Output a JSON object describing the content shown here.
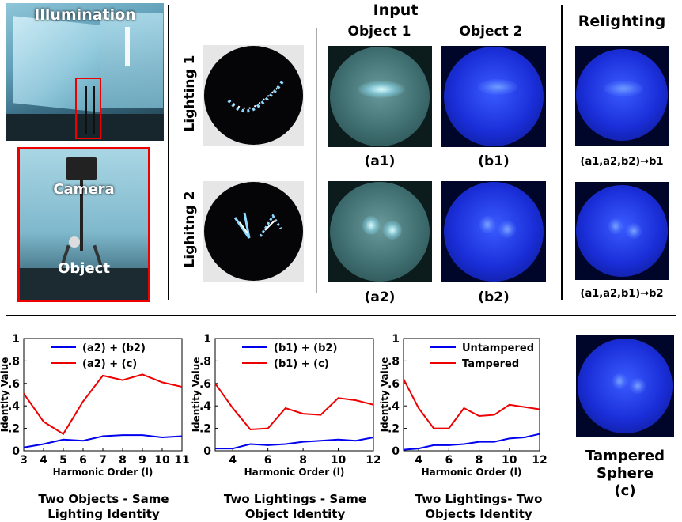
{
  "illumination": {
    "title": "Illumination"
  },
  "setup": {
    "camera_label": "Camera",
    "object_label": "Object"
  },
  "input": {
    "title": "Input",
    "col1": "Object 1",
    "col2": "Object 2",
    "row1": "Lighting 1",
    "row2": "Lighitng 2",
    "cap_a1": "(a1)",
    "cap_b1": "(b1)",
    "cap_a2": "(a2)",
    "cap_b2": "(b2)"
  },
  "relighting": {
    "title": "Relighting",
    "cap1": "(a1,a2,b2)→b1",
    "cap2": "(a1,a2,b1)→b2"
  },
  "tampered": {
    "line1": "Tampered",
    "line2": "Sphere",
    "line3": "(c)"
  },
  "chart_data": [
    {
      "type": "line",
      "title": "Two Objects - Same Lighting  Identity",
      "xlabel": "Harmonic Order (l)",
      "ylabel": "Identity Value",
      "xlim": [
        3,
        11
      ],
      "ylim": [
        0,
        1
      ],
      "xticks": [
        "3",
        "4",
        "5",
        "6",
        "7",
        "8",
        "9",
        "10",
        "11"
      ],
      "yticks": [
        "0",
        ".2",
        ".4",
        ".6",
        ".8",
        "1"
      ],
      "x": [
        3,
        4,
        5,
        6,
        7,
        8,
        9,
        10,
        11
      ],
      "legend_position": "top",
      "series": [
        {
          "name": "(a2) + (b2)",
          "color": "#0000ee",
          "values": [
            0.03,
            0.06,
            0.1,
            0.09,
            0.13,
            0.14,
            0.14,
            0.12,
            0.13
          ]
        },
        {
          "name": "(a2) + (c)",
          "color": "#ee0000",
          "values": [
            0.51,
            0.26,
            0.15,
            0.44,
            0.67,
            0.63,
            0.68,
            0.61,
            0.57
          ]
        }
      ]
    },
    {
      "type": "line",
      "title": "Two Lightings - Same Object Identity",
      "xlabel": "Harmonic Order (l)",
      "ylabel": "Identity Value",
      "xlim": [
        3,
        12
      ],
      "ylim": [
        0,
        1
      ],
      "xticks": [
        "4",
        "6",
        "8",
        "10",
        "12"
      ],
      "yticks": [
        "0",
        ".2",
        ".4",
        ".6",
        ".8",
        "1"
      ],
      "x": [
        3,
        4,
        5,
        6,
        7,
        8,
        9,
        10,
        11,
        12
      ],
      "legend_position": "top",
      "series": [
        {
          "name": "(b1) + (b2)",
          "color": "#0000ee",
          "values": [
            0.02,
            0.02,
            0.06,
            0.05,
            0.06,
            0.08,
            0.09,
            0.1,
            0.09,
            0.12
          ]
        },
        {
          "name": "(b1) + (c)",
          "color": "#ee0000",
          "values": [
            0.6,
            0.38,
            0.19,
            0.2,
            0.38,
            0.33,
            0.32,
            0.47,
            0.45,
            0.41
          ]
        }
      ]
    },
    {
      "type": "line",
      "title": "Two Lightings- Two Objects Identity",
      "xlabel": "Harmonic Order (l)",
      "ylabel": "Identity Value",
      "xlim": [
        3,
        12
      ],
      "ylim": [
        0,
        1
      ],
      "xticks": [
        "4",
        "6",
        "8",
        "10",
        "12"
      ],
      "yticks": [
        "0",
        ".2",
        ".4",
        ".6",
        ".8",
        "1"
      ],
      "x": [
        3,
        4,
        5,
        6,
        7,
        8,
        9,
        10,
        11,
        12
      ],
      "legend_position": "top",
      "series": [
        {
          "name": "Untampered",
          "color": "#0000ee",
          "values": [
            0.01,
            0.02,
            0.05,
            0.05,
            0.06,
            0.08,
            0.08,
            0.11,
            0.12,
            0.15
          ]
        },
        {
          "name": "Tampered",
          "color": "#ee0000",
          "values": [
            0.64,
            0.38,
            0.2,
            0.2,
            0.38,
            0.31,
            0.32,
            0.41,
            0.39,
            0.37
          ]
        }
      ]
    }
  ]
}
